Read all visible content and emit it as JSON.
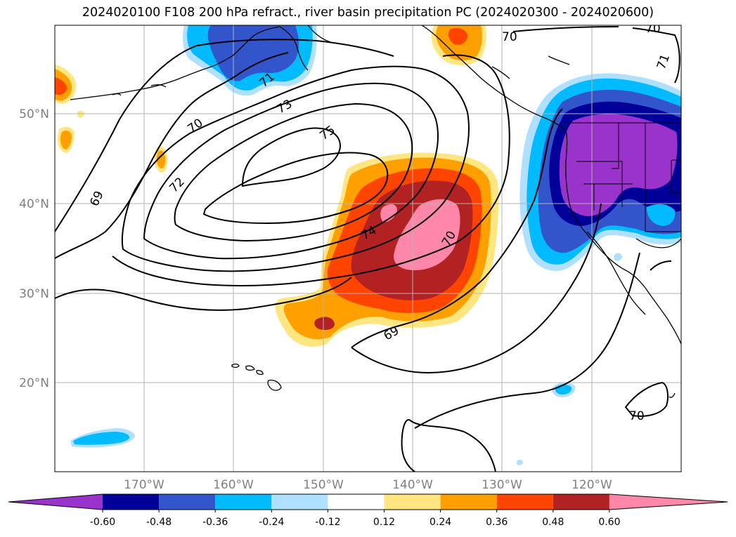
{
  "title": "2024020100 F108 200 hPa refract., river basin precipitation PC (2024020300 - 2024020600)",
  "map": {
    "lat_labels": [
      "50°N",
      "40°N",
      "30°N",
      "20°N"
    ],
    "lon_labels": [
      "170°W",
      "160°W",
      "150°W",
      "140°W",
      "130°W",
      "120°W"
    ],
    "contour_labels": [
      "70",
      "71",
      "73",
      "75",
      "72",
      "69",
      "74",
      "70",
      "69",
      "70",
      "71",
      "70",
      "70"
    ]
  },
  "colorbar": {
    "colors": [
      "#9933cc",
      "#000099",
      "#3355cc",
      "#00bbff",
      "#b0e0ff",
      "#ffffff",
      "#ffe680",
      "#ffa000",
      "#ff4400",
      "#b22222",
      "#ff88aa"
    ],
    "tick_labels": [
      "-0.60",
      "-0.48",
      "-0.36",
      "-0.24",
      "-0.12",
      "0.12",
      "0.24",
      "0.36",
      "0.48",
      "0.60"
    ]
  }
}
